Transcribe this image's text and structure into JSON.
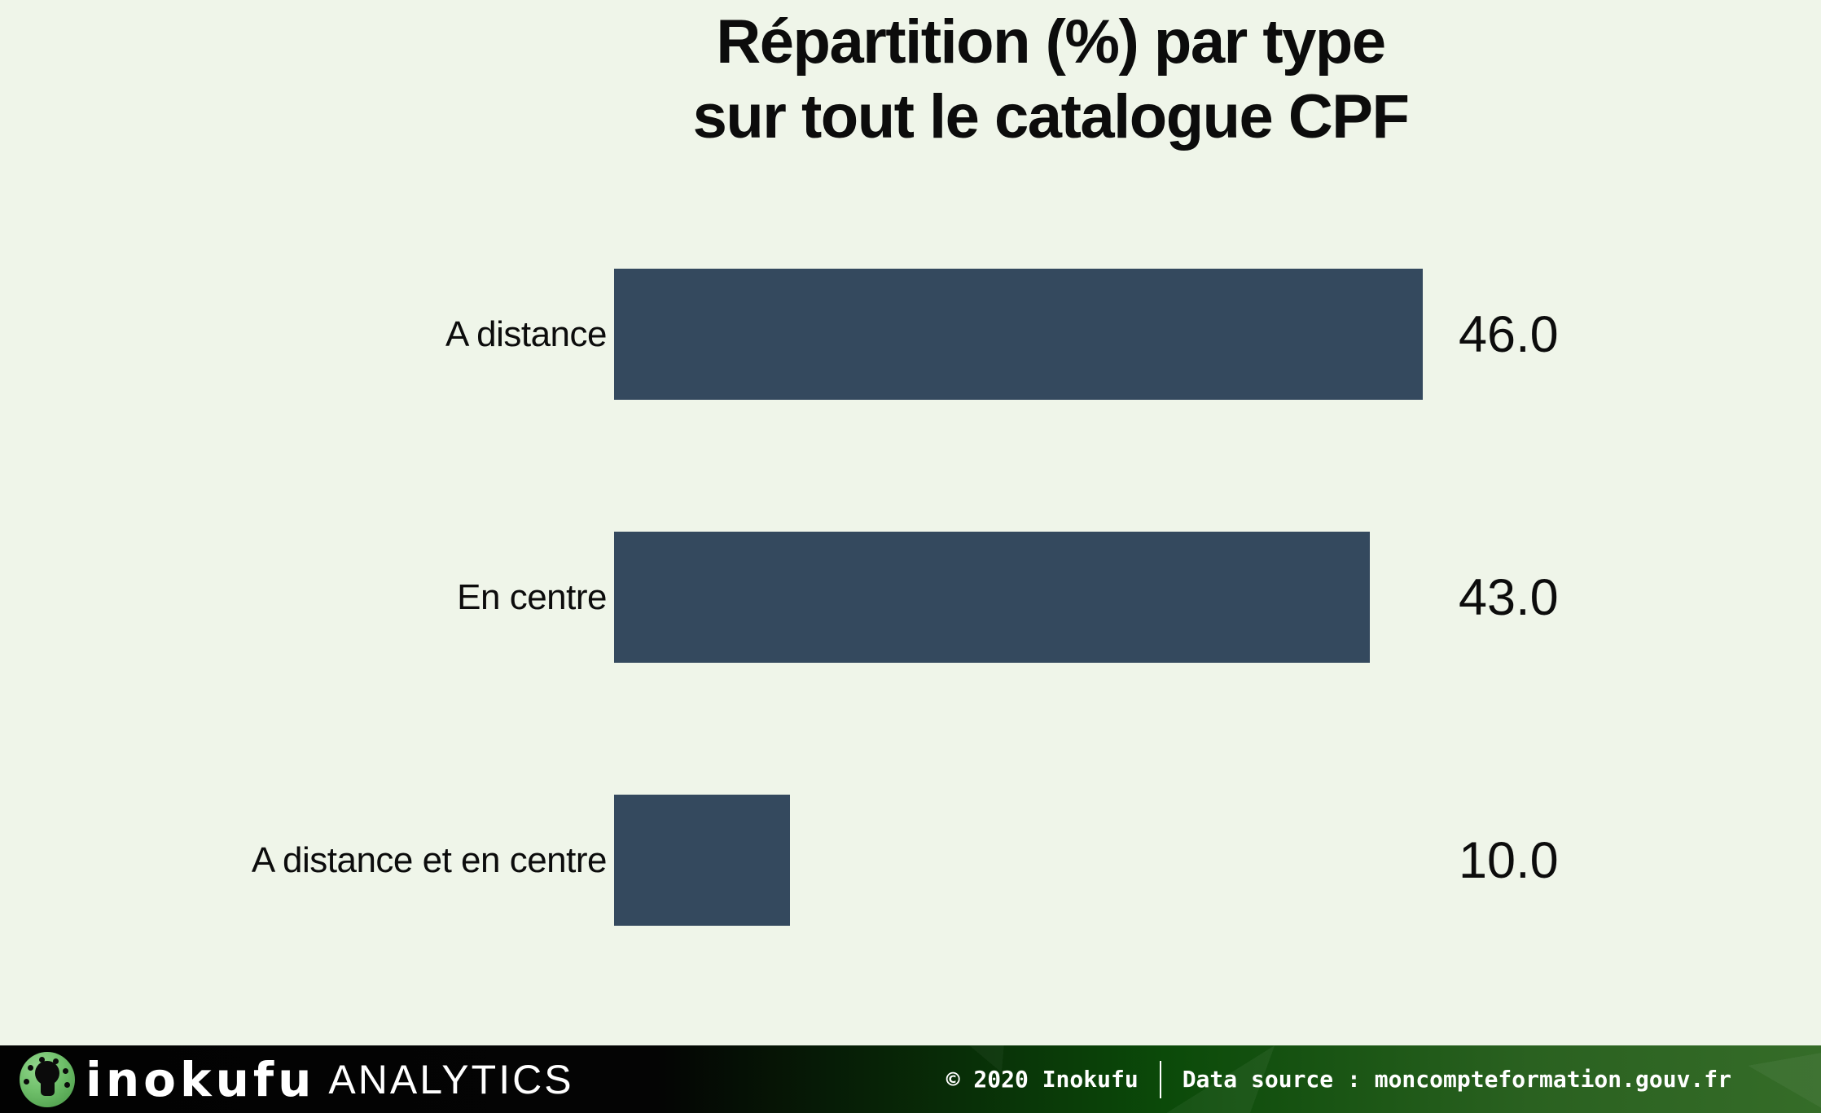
{
  "title": {
    "line1": "Répartition (%) par type",
    "line2": "sur tout le catalogue CPF"
  },
  "chart_data": {
    "type": "bar",
    "orientation": "horizontal",
    "title": "Répartition (%) par type sur tout le catalogue CPF",
    "categories": [
      "A distance",
      "En centre",
      "A distance et en centre"
    ],
    "values": [
      46.0,
      43.0,
      10.0
    ],
    "value_labels": [
      "46.0",
      "43.0",
      "10.0"
    ],
    "unit": "%",
    "xlabel": "",
    "ylabel": "",
    "xlim": [
      0,
      46
    ],
    "grid": false,
    "axes_visible": false,
    "value_label_position": "right-of-bar",
    "bar_color": "#34495e",
    "background": "#eff5e9",
    "text_color": "#0c0c0c"
  },
  "footer": {
    "brand_name": "inokufu",
    "brand_suffix": "ANALYTICS",
    "copyright": "© 2020 Inokufu",
    "separator": "|",
    "source": "Data source : moncompteformation.gouv.fr",
    "colors": {
      "gradient_left": "#020202",
      "gradient_right": "#356c28",
      "logo_green": "#6fbf6a",
      "text": "#ffffff"
    }
  }
}
